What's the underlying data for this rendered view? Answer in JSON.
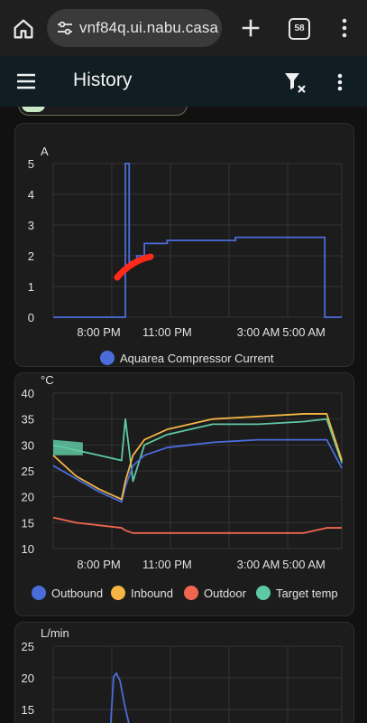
{
  "browser": {
    "url": "vnf84q.ui.nabu.casa",
    "tab_count": "58"
  },
  "app_bar": {
    "title": "History"
  },
  "charts": [
    {
      "unit": "A",
      "y_ticks": [
        "0",
        "1",
        "2",
        "3",
        "4",
        "5"
      ],
      "x_ticks": [
        "8:00 PM",
        "11:00 PM",
        "3:00 AM",
        "5:00 AM"
      ],
      "legend": [
        {
          "name": "Aquarea Compressor Current",
          "color": "#4b6ddc"
        }
      ]
    },
    {
      "unit": "°C",
      "y_ticks": [
        "10",
        "15",
        "20",
        "25",
        "30",
        "35",
        "40"
      ],
      "x_ticks": [
        "8:00 PM",
        "11:00 PM",
        "3:00 AM",
        "5:00 AM"
      ],
      "legend": [
        {
          "name": "Outbound",
          "color": "#4b6ddc"
        },
        {
          "name": "Inbound",
          "color": "#f4b545"
        },
        {
          "name": "Outdoor",
          "color": "#f0664f"
        },
        {
          "name": "Target temp",
          "color": "#5fc9a3"
        }
      ]
    },
    {
      "unit": "L/min",
      "y_ticks": [
        "15",
        "20",
        "25"
      ]
    }
  ],
  "colors": {
    "current": "#4b6ddc",
    "outbound": "#4b6ddc",
    "inbound": "#f4b545",
    "outdoor": "#f0664f",
    "target": "#5fc9a3",
    "annotation": "#ff2a1a"
  },
  "chart_data": [
    {
      "type": "line",
      "ylabel": "A",
      "ylim": [
        0,
        5
      ],
      "x": [
        "18:00",
        "20:00",
        "21:00",
        "21:10",
        "21:20",
        "21:40",
        "22:00",
        "23:00",
        "02:00",
        "05:00",
        "05:50",
        "05:55",
        "06:40"
      ],
      "series": [
        {
          "name": "Aquarea Compressor Current",
          "values": [
            0,
            0,
            0,
            5,
            1.8,
            2.0,
            2.4,
            2.5,
            2.6,
            2.6,
            2.6,
            0,
            0
          ]
        }
      ],
      "grid": true,
      "legend": "bottom"
    },
    {
      "type": "line",
      "ylabel": "°C",
      "ylim": [
        10,
        40
      ],
      "x": [
        "18:00",
        "19:00",
        "20:00",
        "21:00",
        "21:10",
        "21:30",
        "22:00",
        "23:00",
        "01:00",
        "03:00",
        "05:00",
        "06:00",
        "06:40"
      ],
      "series": [
        {
          "name": "Outbound",
          "values": [
            26,
            23.5,
            21,
            19,
            22,
            26,
            28,
            29.5,
            30.5,
            31,
            31,
            31,
            25.5
          ]
        },
        {
          "name": "Inbound",
          "values": [
            28,
            24,
            21.5,
            19.5,
            23,
            28,
            31,
            33,
            35,
            35.5,
            36,
            36,
            27
          ]
        },
        {
          "name": "Outdoor",
          "values": [
            16,
            15,
            14.5,
            14,
            13.5,
            13,
            13,
            13,
            13,
            13,
            13,
            14,
            14
          ]
        },
        {
          "name": "Target temp",
          "values": [
            30,
            29,
            28,
            27,
            35,
            23,
            30,
            32,
            34,
            34,
            34.5,
            35,
            26.5
          ]
        }
      ],
      "grid": true,
      "legend": "bottom"
    }
  ]
}
